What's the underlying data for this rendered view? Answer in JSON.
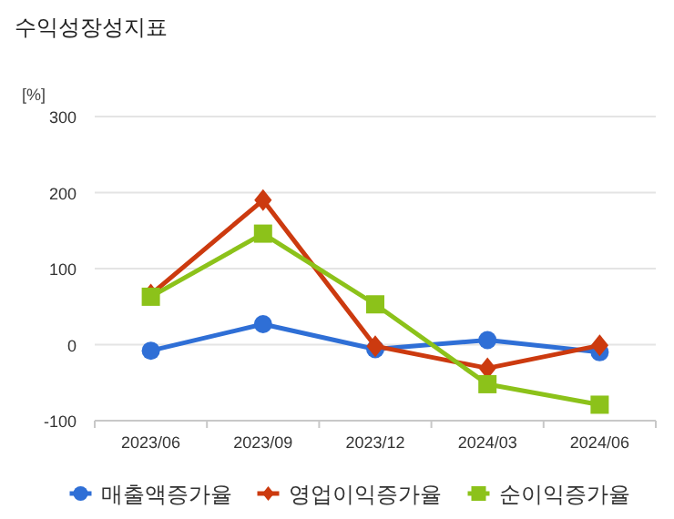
{
  "chart_data": {
    "type": "line",
    "title": "수익성장성지표",
    "ylabel": "[%]",
    "categories": [
      "2023/06",
      "2023/09",
      "2023/12",
      "2024/03",
      "2024/06"
    ],
    "series": [
      {
        "name": "매출액증가율",
        "color": "#2f6fd6",
        "marker": "circle",
        "values": [
          -8,
          27,
          -6,
          6,
          -10
        ]
      },
      {
        "name": "영업이익증가율",
        "color": "#cc3a0f",
        "marker": "diamond",
        "values": [
          66,
          190,
          -2,
          -31,
          -1
        ]
      },
      {
        "name": "순이익증가율",
        "color": "#8cc21a",
        "marker": "square",
        "values": [
          63,
          146,
          53,
          -52,
          -79
        ]
      }
    ],
    "ylim": [
      -100,
      300
    ],
    "yticks": [
      -100,
      0,
      100,
      200,
      300
    ],
    "grid": "y",
    "legend": "bottom"
  }
}
